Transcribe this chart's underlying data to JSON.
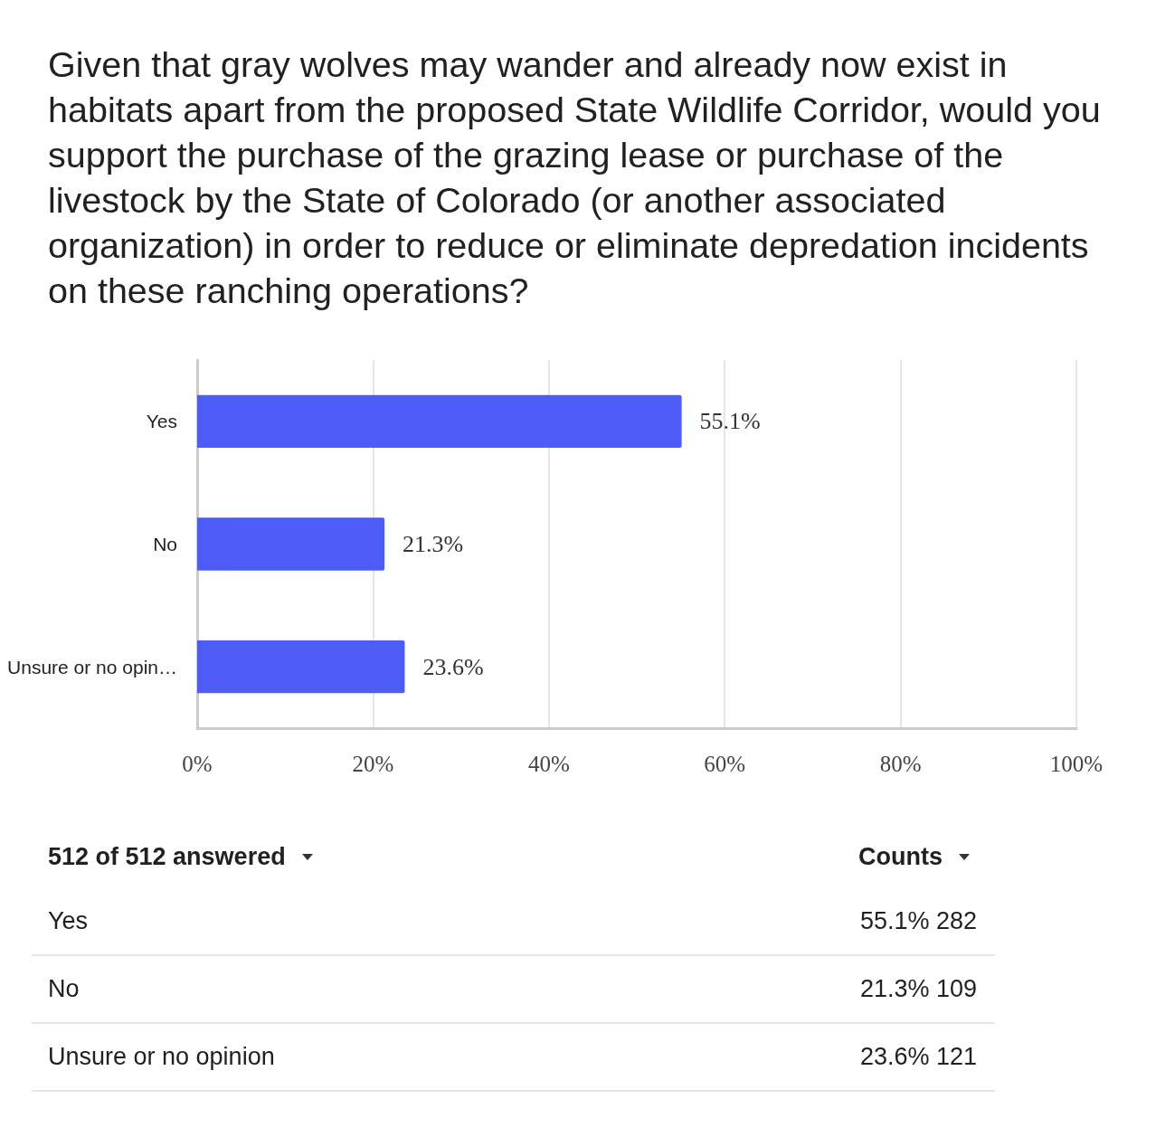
{
  "chart_data": {
    "type": "bar",
    "orientation": "horizontal",
    "title": "Given that gray wolves may wander and already now exist in habitats apart from the proposed State Wildlife Corridor, would you support the purchase of the grazing lease or purchase of the livestock by the State of Colorado (or another associated organization) in order to reduce or eliminate depredation incidents on these ranching operations?",
    "categories": [
      "Yes",
      "No",
      "Unsure or no opin…"
    ],
    "values": [
      55.1,
      21.3,
      23.6
    ],
    "color": "#4e5cf6",
    "value_labels": [
      "55.1%",
      "21.3%",
      "23.6%"
    ],
    "xlim": [
      0,
      100
    ],
    "xticks": [
      {
        "value": 0,
        "label": "0%"
      },
      {
        "value": 20,
        "label": "20%"
      },
      {
        "value": 40,
        "label": "40%"
      },
      {
        "value": 60,
        "label": "60%"
      },
      {
        "value": 80,
        "label": "80%"
      },
      {
        "value": 100,
        "label": "100%"
      }
    ],
    "grid": "x",
    "annotations": [
      "512 of 512 answered",
      "Counts",
      "Yes",
      "55.1% 282",
      "No",
      "21.3% 109",
      "Unsure or no opinion",
      "23.6% 121"
    ]
  }
}
